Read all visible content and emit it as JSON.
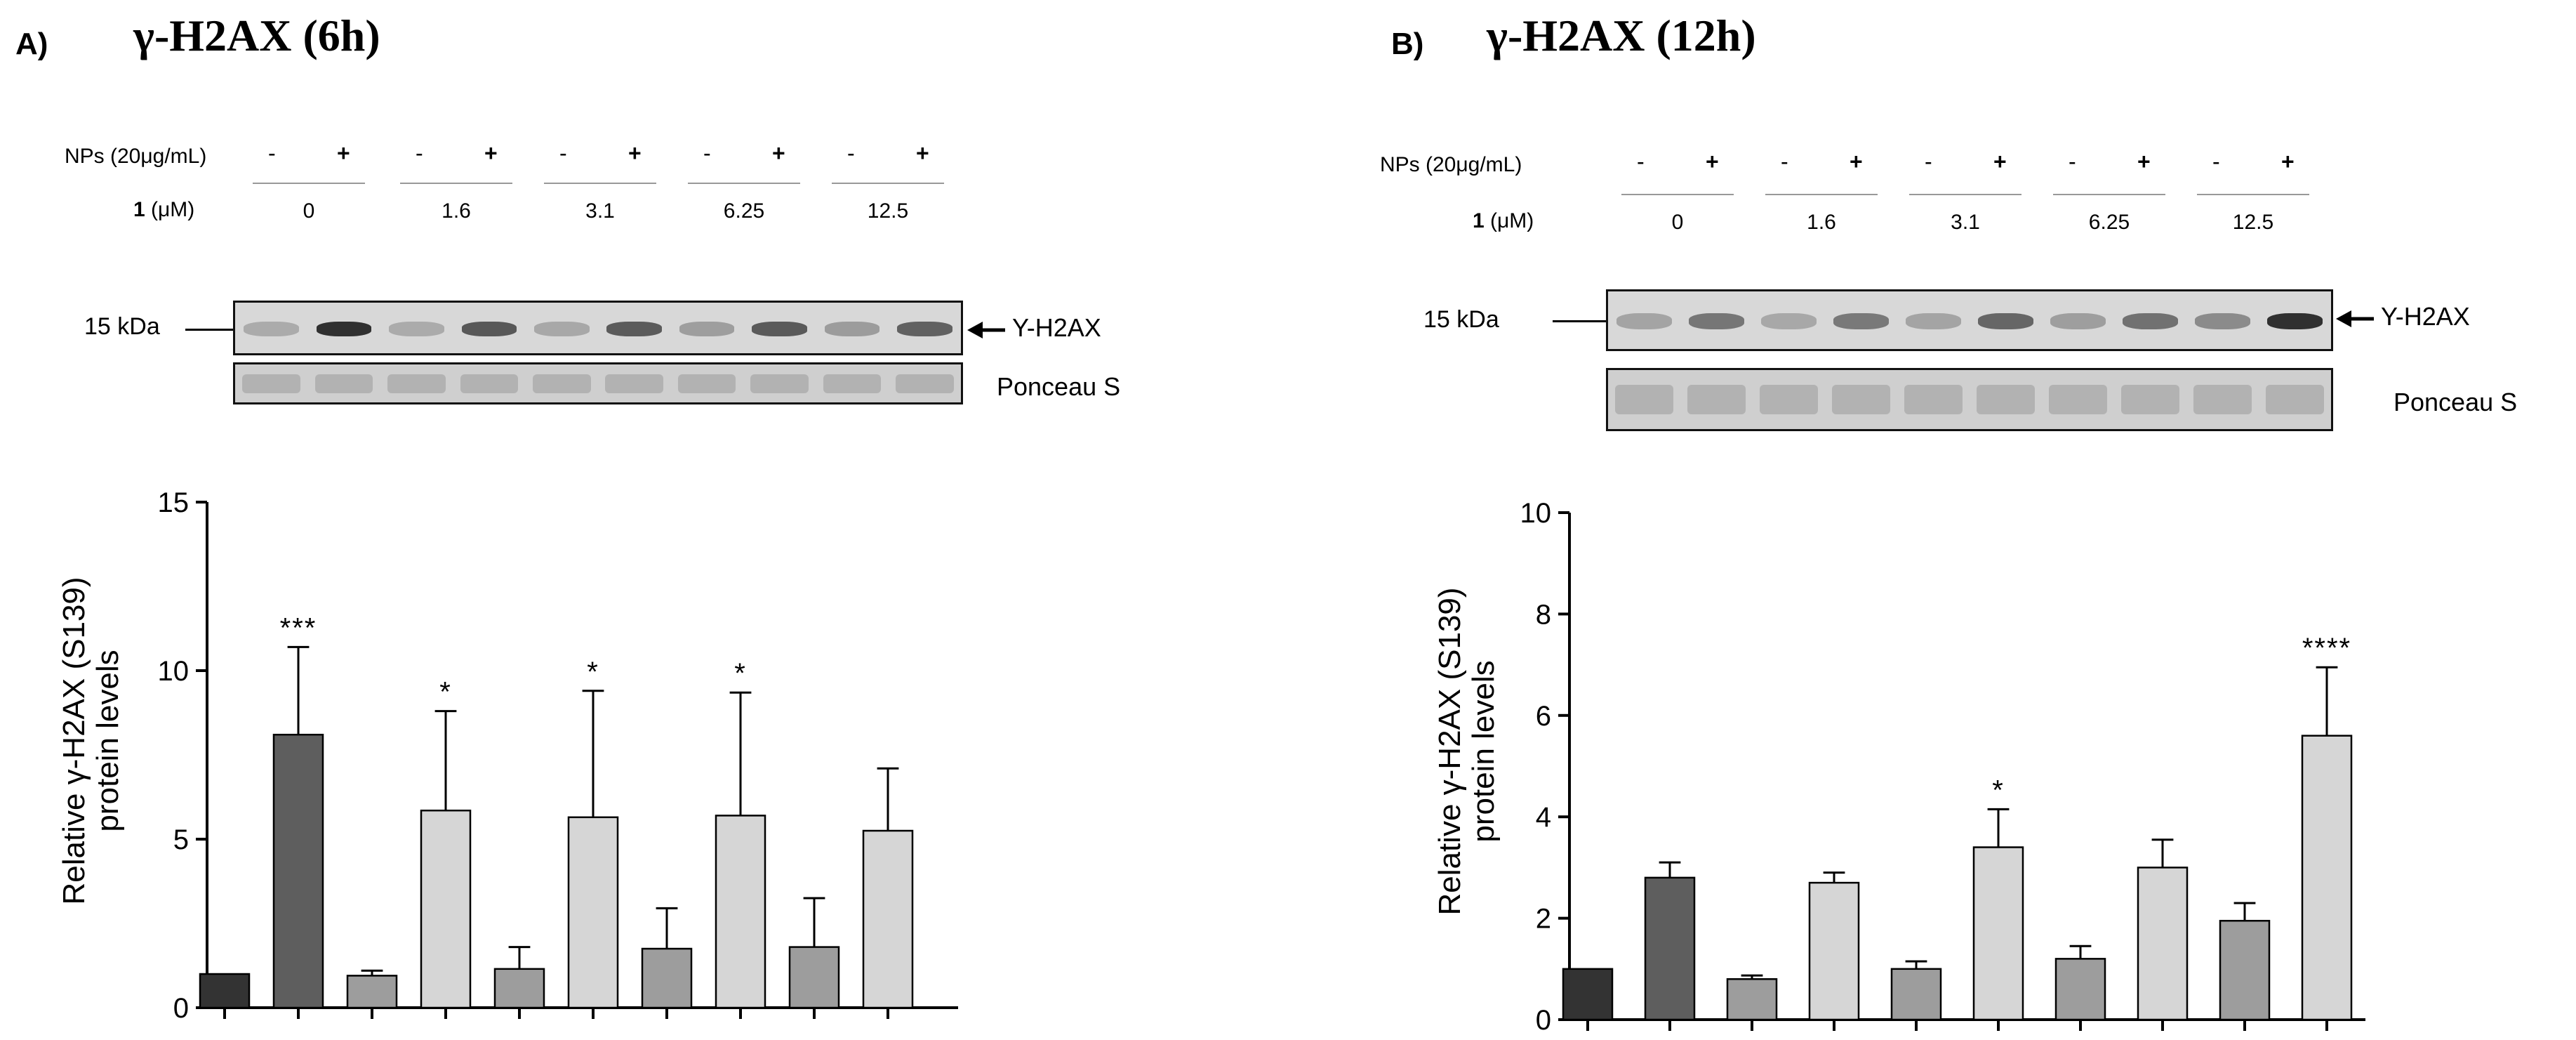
{
  "figure": {
    "panels": [
      {
        "id": "A",
        "letter": "A)",
        "title": "γ-H2AX (6h)",
        "nps_label": "NPs (20μg/mL)",
        "compound_label_bold": "1",
        "compound_label_unit": "(μM)",
        "concentrations": [
          "0",
          "1.6",
          "3.1",
          "6.25",
          "12.5"
        ],
        "minus": "-",
        "plus": "+",
        "marker": "15 kDa",
        "band_label": "Y-H2AX",
        "loading_label": "Ponceau S"
      },
      {
        "id": "B",
        "letter": "B)",
        "title": "γ-H2AX (12h)",
        "nps_label": "NPs (20μg/mL)",
        "compound_label_bold": "1",
        "compound_label_unit": "(μM)",
        "concentrations": [
          "0",
          "1.6",
          "3.1",
          "6.25",
          "12.5"
        ],
        "minus": "-",
        "plus": "+",
        "marker": "15 kDa",
        "band_label": "Y-H2AX",
        "loading_label": "Ponceau S"
      }
    ]
  },
  "chart_data": [
    {
      "type": "bar",
      "title": "γ-H2AX (6h)",
      "ylabel_line1": "Relative γ-H2AX (S139)",
      "ylabel_line2": "protein levels",
      "xlabel": "",
      "ylim": [
        0,
        15
      ],
      "yticks": [
        "0",
        "5",
        "10",
        "15"
      ],
      "categories": [
        "0 -",
        "0 +",
        "1.6 -",
        "1.6 +",
        "3.1 -",
        "3.1 +",
        "6.25 -",
        "6.25 +",
        "12.5 -",
        "12.5 +"
      ],
      "values": [
        1.0,
        8.1,
        0.95,
        5.85,
        1.15,
        5.65,
        1.75,
        5.7,
        1.8,
        5.25
      ],
      "errors": [
        0,
        2.6,
        0.15,
        2.95,
        0.65,
        3.75,
        1.2,
        3.65,
        1.45,
        1.85
      ],
      "significance": [
        "",
        "***",
        "",
        "*",
        "",
        "*",
        "",
        "*",
        "",
        ""
      ],
      "colors": [
        "#333333",
        "#5e5e5e",
        "#9d9d9d",
        "#d6d6d6",
        "#9d9d9d",
        "#d6d6d6",
        "#9d9d9d",
        "#d6d6d6",
        "#9d9d9d",
        "#d6d6d6"
      ]
    },
    {
      "type": "bar",
      "title": "γ-H2AX (12h)",
      "ylabel_line1": "Relative γ-H2AX (S139)",
      "ylabel_line2": "protein levels",
      "xlabel": "",
      "ylim": [
        0,
        10
      ],
      "yticks": [
        "0",
        "2",
        "4",
        "6",
        "8",
        "10"
      ],
      "categories": [
        "0 -",
        "0 +",
        "1.6 -",
        "1.6 +",
        "3.1 -",
        "3.1 +",
        "6.25 -",
        "6.25 +",
        "12.5 -",
        "12.5 +"
      ],
      "values": [
        1.0,
        2.8,
        0.8,
        2.7,
        1.0,
        3.4,
        1.2,
        3.0,
        1.95,
        5.6
      ],
      "errors": [
        0,
        0.3,
        0.07,
        0.2,
        0.15,
        0.75,
        0.25,
        0.55,
        0.35,
        1.35
      ],
      "significance": [
        "",
        "",
        "",
        "",
        "",
        "*",
        "",
        "",
        "",
        "****"
      ],
      "colors": [
        "#333333",
        "#5e5e5e",
        "#9d9d9d",
        "#d6d6d6",
        "#9d9d9d",
        "#d6d6d6",
        "#9d9d9d",
        "#d6d6d6",
        "#9d9d9d",
        "#d6d6d6"
      ]
    }
  ]
}
